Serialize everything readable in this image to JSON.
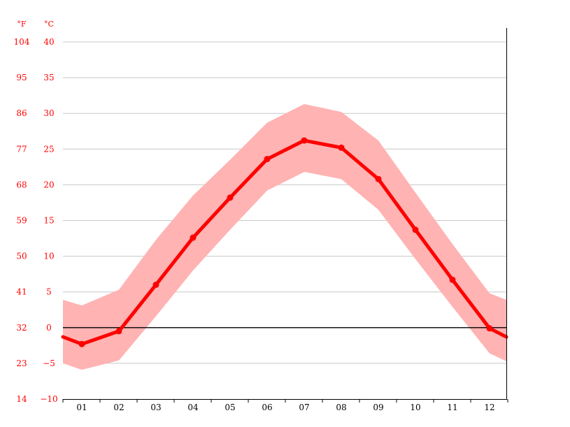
{
  "chart_data": {
    "type": "line",
    "title": "",
    "xlabel": "",
    "ylabel": "",
    "grid": true,
    "legend": "none",
    "colors": {
      "line": "#ff0000",
      "band": "#ffb3b3",
      "grid": "#c8c8c8",
      "axis_text": "#ff0000",
      "month_text": "#000000",
      "zero_line": "#000000"
    },
    "y_unit_f": "°F",
    "y_unit_c": "°C",
    "ylim_c": [
      -10,
      40
    ],
    "y_ticks_c": [
      "40",
      "35",
      "30",
      "25",
      "20",
      "15",
      "10",
      "5",
      "0",
      "−5",
      "−10"
    ],
    "y_ticks_f": [
      "104",
      "95",
      "86",
      "77",
      "68",
      "59",
      "50",
      "41",
      "32",
      "23",
      "14"
    ],
    "categories": [
      "01",
      "02",
      "03",
      "04",
      "05",
      "06",
      "07",
      "08",
      "09",
      "10",
      "11",
      "12"
    ],
    "series": [
      {
        "values": [
          -2.3,
          -0.5,
          6.0,
          12.6,
          18.2,
          23.6,
          26.2,
          25.2,
          20.8,
          13.7,
          6.7,
          -0.1
        ]
      }
    ],
    "band": {
      "upper": [
        3.1,
        5.3,
        12.3,
        18.5,
        23.5,
        28.7,
        31.3,
        30.2,
        26.2,
        18.9,
        11.7,
        4.8
      ],
      "lower": [
        -5.9,
        -4.6,
        1.6,
        8.0,
        13.7,
        19.2,
        21.8,
        20.8,
        16.5,
        9.6,
        2.9,
        -3.6
      ]
    },
    "edge_values": {
      "left": -1.3,
      "right": -1.3,
      "band_upper_left": 3.9,
      "band_upper_right": 3.9,
      "band_lower_left": -5.0,
      "band_lower_right": -4.7
    }
  }
}
